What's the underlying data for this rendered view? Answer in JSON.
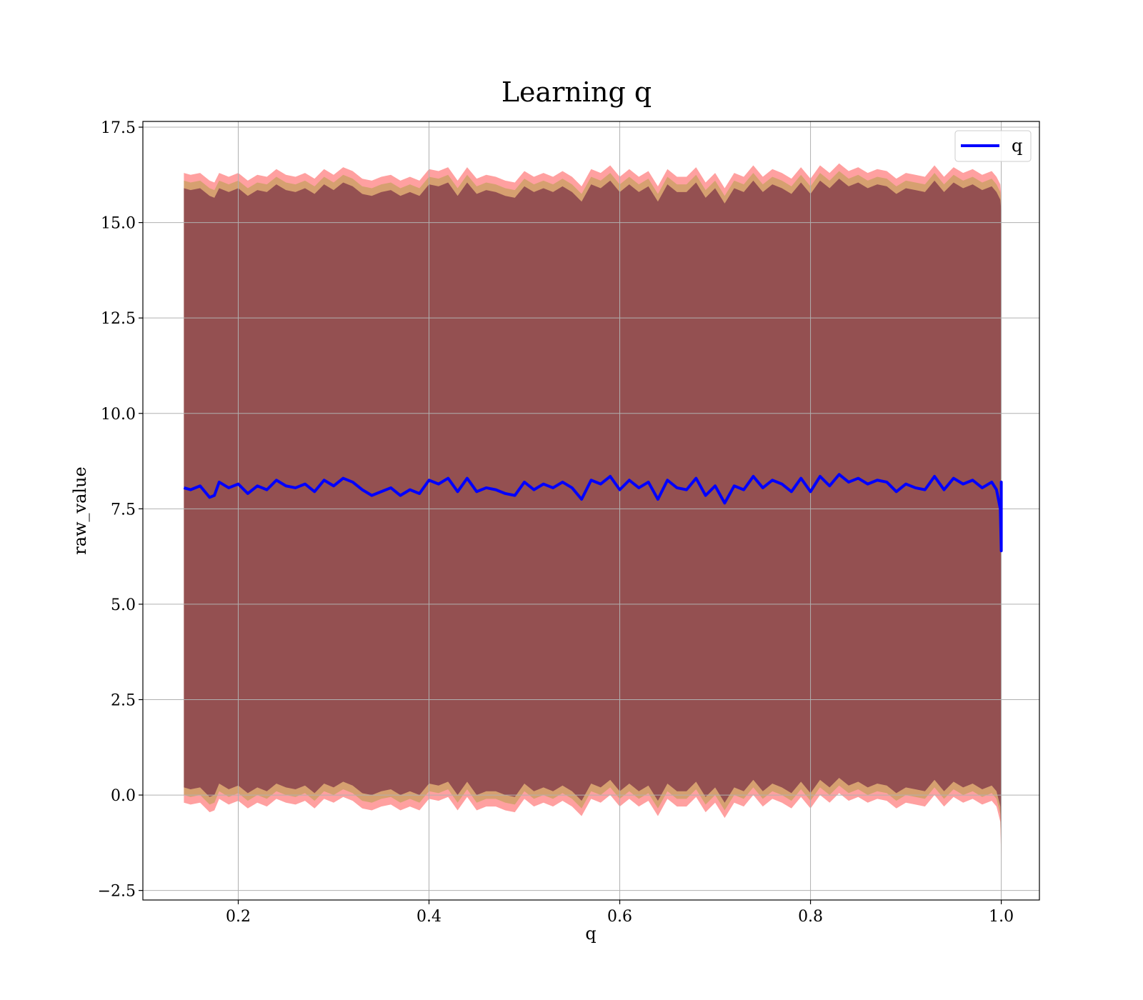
{
  "chart_data": {
    "type": "line",
    "title": "Learning q",
    "xlabel": "q",
    "ylabel": "raw_value",
    "xlim": [
      0.1,
      1.04
    ],
    "ylim": [
      -2.75,
      17.65
    ],
    "xticks": [
      0.2,
      0.4,
      0.6,
      0.8,
      1.0
    ],
    "xtick_labels": [
      "0.2",
      "0.4",
      "0.6",
      "0.8",
      "1.0"
    ],
    "yticks": [
      -2.5,
      0.0,
      2.5,
      5.0,
      7.5,
      10.0,
      12.5,
      15.0,
      17.5
    ],
    "ytick_labels": [
      "−2.5",
      "0.0",
      "2.5",
      "5.0",
      "7.5",
      "10.0",
      "12.5",
      "15.0",
      "17.5"
    ],
    "grid": true,
    "legend_position": "top-right",
    "series": [
      {
        "name": "q",
        "color": "#0000ff",
        "x": [
          0.143,
          0.15,
          0.16,
          0.17,
          0.175,
          0.18,
          0.19,
          0.2,
          0.21,
          0.22,
          0.23,
          0.24,
          0.25,
          0.26,
          0.27,
          0.28,
          0.29,
          0.3,
          0.31,
          0.32,
          0.33,
          0.34,
          0.35,
          0.36,
          0.37,
          0.38,
          0.39,
          0.4,
          0.41,
          0.42,
          0.43,
          0.44,
          0.45,
          0.46,
          0.47,
          0.48,
          0.49,
          0.5,
          0.51,
          0.52,
          0.53,
          0.54,
          0.55,
          0.56,
          0.57,
          0.58,
          0.59,
          0.6,
          0.61,
          0.62,
          0.63,
          0.64,
          0.65,
          0.66,
          0.67,
          0.68,
          0.69,
          0.7,
          0.71,
          0.72,
          0.73,
          0.74,
          0.75,
          0.76,
          0.77,
          0.78,
          0.79,
          0.8,
          0.81,
          0.82,
          0.83,
          0.84,
          0.85,
          0.86,
          0.87,
          0.88,
          0.89,
          0.9,
          0.91,
          0.92,
          0.93,
          0.94,
          0.95,
          0.96,
          0.97,
          0.98,
          0.99,
          0.995,
          0.999,
          1.0,
          1.0,
          1.0
        ],
        "y": [
          8.05,
          8.0,
          8.1,
          7.8,
          7.85,
          8.2,
          8.05,
          8.15,
          7.9,
          8.1,
          8.0,
          8.25,
          8.1,
          8.05,
          8.15,
          7.95,
          8.25,
          8.1,
          8.3,
          8.2,
          8.0,
          7.85,
          7.95,
          8.05,
          7.85,
          8.0,
          7.9,
          8.25,
          8.15,
          8.3,
          7.95,
          8.3,
          7.95,
          8.05,
          8.0,
          7.9,
          7.85,
          8.2,
          8.0,
          8.15,
          8.05,
          8.2,
          8.05,
          7.75,
          8.25,
          8.15,
          8.35,
          8.0,
          8.25,
          8.05,
          8.2,
          7.75,
          8.25,
          8.05,
          8.0,
          8.3,
          7.85,
          8.1,
          7.65,
          8.1,
          8.0,
          8.35,
          8.05,
          8.25,
          8.15,
          7.95,
          8.3,
          7.95,
          8.35,
          8.1,
          8.4,
          8.2,
          8.3,
          8.15,
          8.25,
          8.2,
          7.95,
          8.15,
          8.05,
          8.0,
          8.35,
          8.0,
          8.3,
          8.15,
          8.25,
          8.05,
          8.2,
          8.0,
          7.5,
          6.4,
          8.2,
          7.6
        ]
      }
    ],
    "bands": [
      {
        "description": "outer band (red)",
        "color": "#ff8080",
        "upper": [
          16.3,
          16.25,
          16.3,
          16.1,
          16.05,
          16.3,
          16.2,
          16.3,
          16.1,
          16.25,
          16.2,
          16.4,
          16.25,
          16.2,
          16.3,
          16.15,
          16.4,
          16.25,
          16.45,
          16.35,
          16.15,
          16.1,
          16.2,
          16.25,
          16.1,
          16.2,
          16.1,
          16.4,
          16.35,
          16.45,
          16.1,
          16.45,
          16.15,
          16.25,
          16.2,
          16.1,
          16.05,
          16.35,
          16.2,
          16.3,
          16.2,
          16.35,
          16.2,
          15.95,
          16.4,
          16.3,
          16.5,
          16.2,
          16.4,
          16.2,
          16.35,
          15.95,
          16.4,
          16.2,
          16.2,
          16.45,
          16.05,
          16.3,
          15.9,
          16.3,
          16.2,
          16.5,
          16.2,
          16.4,
          16.3,
          16.15,
          16.45,
          16.15,
          16.5,
          16.3,
          16.55,
          16.35,
          16.45,
          16.3,
          16.4,
          16.35,
          16.15,
          16.3,
          16.25,
          16.2,
          16.5,
          16.2,
          16.45,
          16.3,
          16.4,
          16.25,
          16.35,
          16.2,
          16.0,
          15.7,
          15.7,
          15.7
        ],
        "lower": [
          -0.2,
          -0.25,
          -0.2,
          -0.45,
          -0.4,
          -0.1,
          -0.25,
          -0.15,
          -0.35,
          -0.2,
          -0.3,
          -0.1,
          -0.2,
          -0.25,
          -0.15,
          -0.35,
          -0.1,
          -0.2,
          -0.05,
          -0.15,
          -0.35,
          -0.4,
          -0.3,
          -0.25,
          -0.4,
          -0.3,
          -0.4,
          -0.1,
          -0.15,
          -0.05,
          -0.4,
          -0.05,
          -0.4,
          -0.3,
          -0.3,
          -0.4,
          -0.45,
          -0.1,
          -0.3,
          -0.2,
          -0.3,
          -0.15,
          -0.3,
          -0.55,
          -0.1,
          -0.2,
          0.0,
          -0.3,
          -0.1,
          -0.3,
          -0.15,
          -0.55,
          -0.1,
          -0.3,
          -0.3,
          -0.05,
          -0.45,
          -0.2,
          -0.6,
          -0.2,
          -0.3,
          0.0,
          -0.3,
          -0.1,
          -0.2,
          -0.35,
          -0.05,
          -0.35,
          0.0,
          -0.2,
          0.05,
          -0.15,
          -0.05,
          -0.2,
          -0.1,
          -0.15,
          -0.35,
          -0.2,
          -0.25,
          -0.3,
          0.0,
          -0.3,
          -0.05,
          -0.2,
          -0.1,
          -0.25,
          -0.15,
          -0.3,
          -0.7,
          -1.8,
          -1.8,
          -1.8
        ]
      },
      {
        "description": "middle band (orange)",
        "color": "#c8a060",
        "upper": [
          16.1,
          16.05,
          16.1,
          15.9,
          15.85,
          16.1,
          16.0,
          16.1,
          15.9,
          16.05,
          16.0,
          16.2,
          16.05,
          16.0,
          16.1,
          15.95,
          16.2,
          16.05,
          16.25,
          16.15,
          15.95,
          15.9,
          16.0,
          16.05,
          15.9,
          16.0,
          15.9,
          16.2,
          16.15,
          16.25,
          15.9,
          16.25,
          15.95,
          16.05,
          16.0,
          15.9,
          15.85,
          16.15,
          16.0,
          16.1,
          16.0,
          16.15,
          16.0,
          15.75,
          16.2,
          16.1,
          16.3,
          16.0,
          16.2,
          16.0,
          16.15,
          15.75,
          16.2,
          16.0,
          16.0,
          16.25,
          15.85,
          16.1,
          15.7,
          16.1,
          16.0,
          16.3,
          16.0,
          16.2,
          16.1,
          15.95,
          16.25,
          15.95,
          16.3,
          16.1,
          16.35,
          16.15,
          16.25,
          16.1,
          16.2,
          16.15,
          15.95,
          16.1,
          16.05,
          16.0,
          16.3,
          16.0,
          16.25,
          16.1,
          16.2,
          16.05,
          16.15,
          16.0,
          15.8,
          15.5,
          15.5,
          15.5
        ],
        "lower": [
          0.0,
          -0.05,
          0.0,
          -0.25,
          -0.2,
          0.1,
          -0.05,
          0.05,
          -0.15,
          0.0,
          -0.1,
          0.1,
          0.0,
          -0.05,
          0.05,
          -0.15,
          0.1,
          0.0,
          0.15,
          0.05,
          -0.15,
          -0.2,
          -0.1,
          -0.05,
          -0.2,
          -0.1,
          -0.2,
          0.1,
          0.05,
          0.15,
          -0.2,
          0.15,
          -0.2,
          -0.1,
          -0.1,
          -0.2,
          -0.25,
          0.1,
          -0.1,
          0.0,
          -0.1,
          0.05,
          -0.1,
          -0.35,
          0.1,
          0.0,
          0.2,
          -0.1,
          0.1,
          -0.1,
          0.05,
          -0.35,
          0.1,
          -0.1,
          -0.1,
          0.15,
          -0.25,
          0.0,
          -0.4,
          0.0,
          -0.1,
          0.2,
          -0.1,
          0.1,
          0.0,
          -0.15,
          0.15,
          -0.15,
          0.2,
          0.0,
          0.25,
          0.05,
          0.15,
          0.0,
          0.1,
          0.05,
          -0.15,
          0.0,
          -0.05,
          -0.1,
          0.2,
          -0.1,
          0.15,
          0.0,
          0.1,
          -0.05,
          0.05,
          -0.1,
          -0.5,
          -1.6,
          -1.6,
          -1.6
        ]
      },
      {
        "description": "inner band (purple)",
        "color": "#7a3045",
        "upper": [
          15.9,
          15.85,
          15.9,
          15.7,
          15.65,
          15.9,
          15.8,
          15.9,
          15.7,
          15.85,
          15.8,
          16.0,
          15.85,
          15.8,
          15.9,
          15.75,
          16.0,
          15.85,
          16.05,
          15.95,
          15.75,
          15.7,
          15.8,
          15.85,
          15.7,
          15.8,
          15.7,
          16.0,
          15.95,
          16.05,
          15.7,
          16.05,
          15.75,
          15.85,
          15.8,
          15.7,
          15.65,
          15.95,
          15.8,
          15.9,
          15.8,
          15.95,
          15.8,
          15.55,
          16.0,
          15.9,
          16.1,
          15.8,
          16.0,
          15.8,
          15.95,
          15.55,
          16.0,
          15.8,
          15.8,
          16.05,
          15.65,
          15.9,
          15.5,
          15.9,
          15.8,
          16.1,
          15.8,
          16.0,
          15.9,
          15.75,
          16.05,
          15.75,
          16.1,
          15.9,
          16.15,
          15.95,
          16.05,
          15.9,
          16.0,
          15.95,
          15.75,
          15.9,
          15.85,
          15.8,
          16.1,
          15.8,
          16.05,
          15.9,
          16.0,
          15.85,
          15.95,
          15.8,
          15.6,
          15.3,
          15.3,
          15.3
        ],
        "lower": [
          0.2,
          0.15,
          0.2,
          -0.05,
          0.0,
          0.3,
          0.15,
          0.25,
          0.05,
          0.2,
          0.1,
          0.3,
          0.2,
          0.15,
          0.25,
          0.05,
          0.3,
          0.2,
          0.35,
          0.25,
          0.05,
          0.0,
          0.1,
          0.15,
          0.0,
          0.1,
          0.0,
          0.3,
          0.25,
          0.35,
          0.0,
          0.35,
          0.0,
          0.1,
          0.1,
          0.0,
          -0.05,
          0.3,
          0.1,
          0.2,
          0.1,
          0.25,
          0.1,
          -0.15,
          0.3,
          0.2,
          0.4,
          0.1,
          0.3,
          0.1,
          0.25,
          -0.15,
          0.3,
          0.1,
          0.1,
          0.35,
          -0.05,
          0.2,
          -0.2,
          0.2,
          0.1,
          0.4,
          0.1,
          0.3,
          0.2,
          0.05,
          0.35,
          0.05,
          0.4,
          0.2,
          0.45,
          0.25,
          0.35,
          0.2,
          0.3,
          0.25,
          0.05,
          0.2,
          0.15,
          0.1,
          0.4,
          0.1,
          0.35,
          0.2,
          0.3,
          0.15,
          0.25,
          0.1,
          -0.3,
          -1.4,
          -1.4,
          -1.4
        ]
      }
    ]
  }
}
